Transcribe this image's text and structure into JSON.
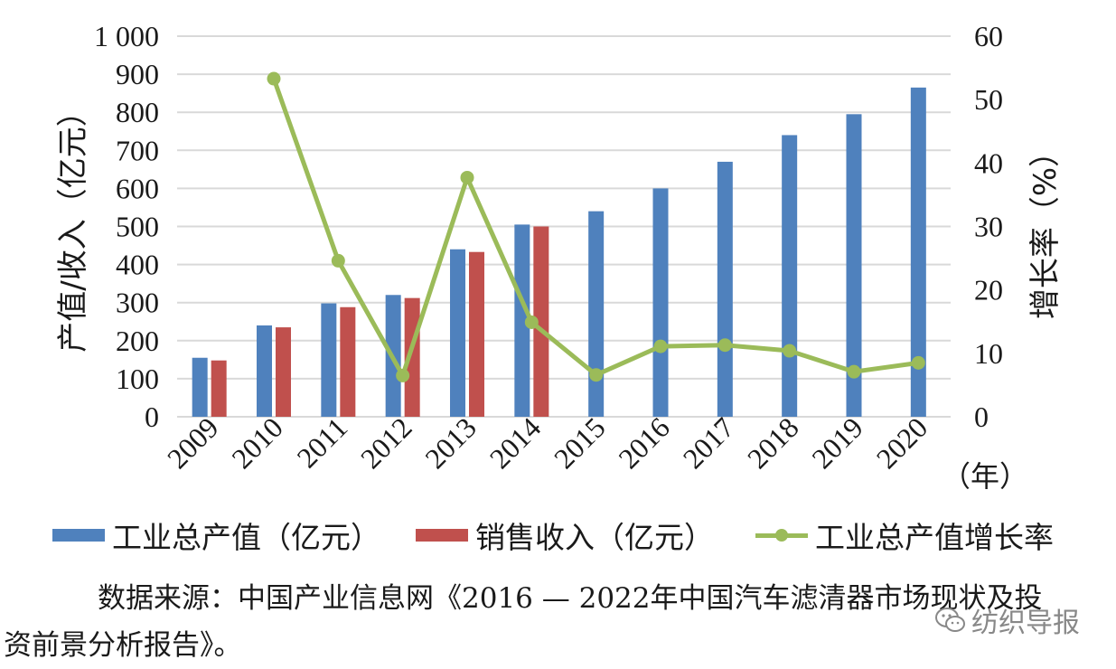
{
  "chart_data": {
    "type": "bar+line",
    "categories": [
      "2009",
      "2010",
      "2011",
      "2012",
      "2013",
      "2014",
      "2015",
      "2016",
      "2017",
      "2018",
      "2019",
      "2020"
    ],
    "series": [
      {
        "name": "工业总产值（亿元）",
        "type": "bar",
        "axis": "left",
        "color": "#4f81bd",
        "values": [
          155,
          240,
          298,
          320,
          440,
          505,
          540,
          600,
          670,
          740,
          795,
          865
        ]
      },
      {
        "name": "销售收入（亿元）",
        "type": "bar",
        "axis": "left",
        "color": "#c0504d",
        "values": [
          148,
          235,
          288,
          312,
          433,
          500,
          null,
          null,
          null,
          null,
          null,
          null
        ]
      },
      {
        "name": "工业总产值增长率",
        "type": "line",
        "axis": "right",
        "color": "#9bbb59",
        "values": [
          null,
          53.3,
          24.6,
          6.5,
          37.7,
          14.9,
          6.6,
          11.1,
          11.3,
          10.4,
          7.1,
          8.5
        ]
      }
    ],
    "left_axis": {
      "label": "产值/收入（亿元）",
      "range": [
        0,
        1000
      ],
      "ticks": [
        "0",
        "100",
        "200",
        "300",
        "400",
        "500",
        "600",
        "700",
        "800",
        "900",
        "1 000"
      ]
    },
    "right_axis": {
      "label": "增长率（%）",
      "range": [
        0,
        60
      ],
      "ticks": [
        "0",
        "10",
        "20",
        "30",
        "40",
        "50",
        "60"
      ]
    },
    "x_unit": "（年）",
    "grid": true,
    "legend_position": "bottom"
  },
  "legend": {
    "items": [
      "工业总产值（亿元）",
      "销售收入（亿元）",
      "工业总产值增长率"
    ]
  },
  "source": {
    "line1": "数据来源：中国产业信息网《2016 — 2022年中国汽车滤清器市场现状及投",
    "line2": "资前景分析报告》。"
  },
  "watermark": {
    "text": "纺织导报"
  },
  "colors": {
    "bar1": "#4f81bd",
    "bar2": "#c0504d",
    "line": "#9bbb59",
    "grid": "#d9d9d9"
  }
}
